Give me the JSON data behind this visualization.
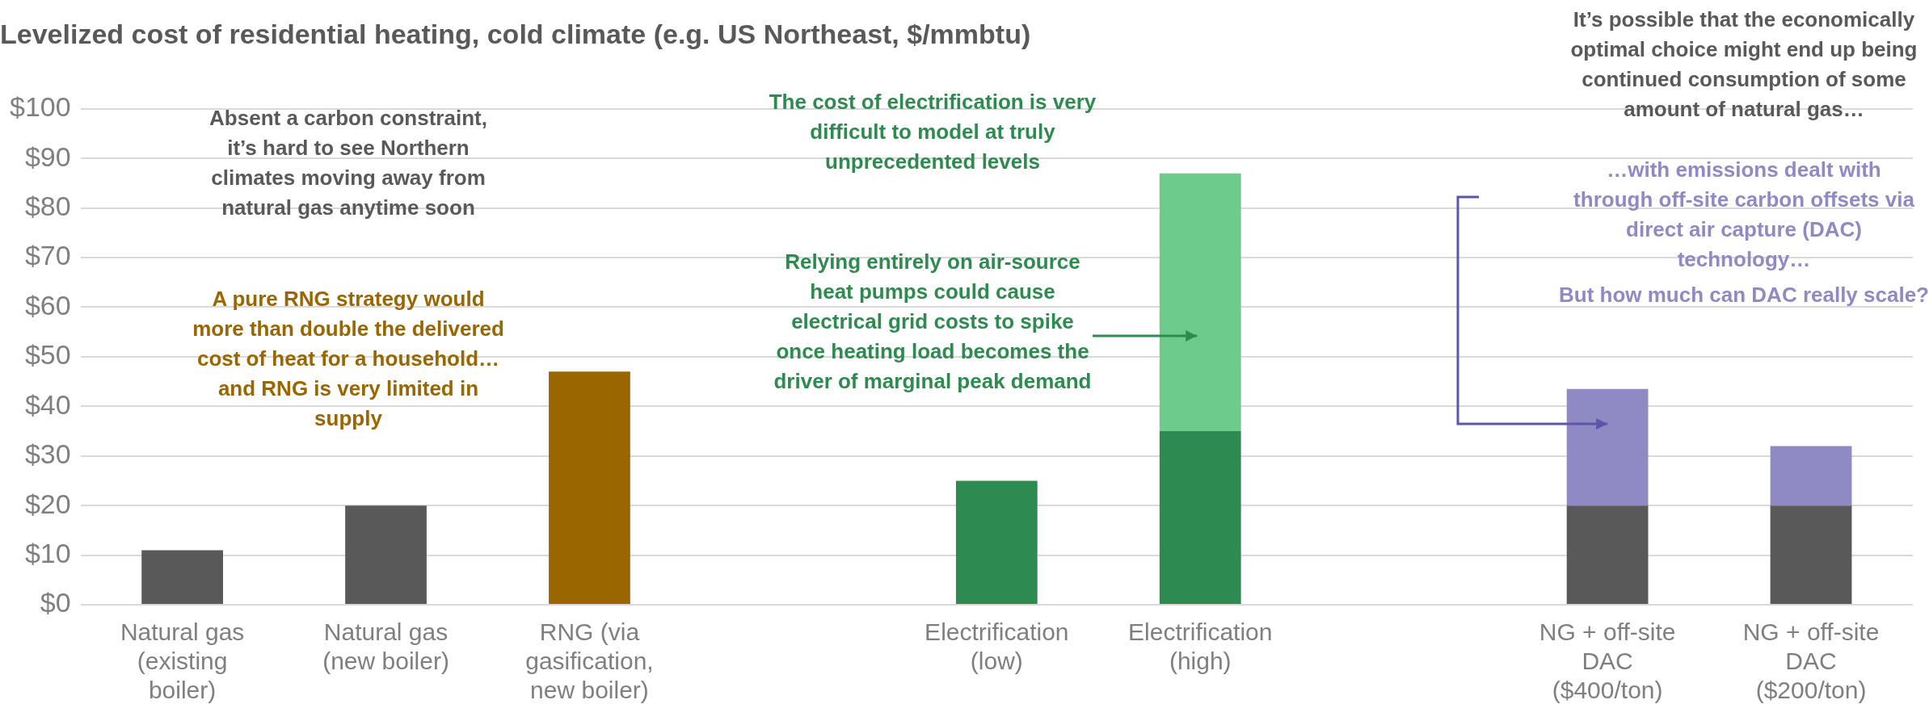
{
  "chart_data": {
    "type": "bar",
    "title": "Levelized cost of residential heating, cold climate (e.g. US Northeast, $/mmbtu)",
    "categories": [
      "Natural gas (existing boiler)",
      "Natural gas (new boiler)",
      "RNG (via gasification, new boiler)",
      null,
      "Electrification (low)",
      "Electrification (high)",
      null,
      "NG + off-site DAC ($400/ton)",
      "NG + off-site DAC ($200/ton)"
    ],
    "stacked": true,
    "series": [
      {
        "colors": [
          "#595959",
          "#595959",
          "#996600",
          "#2e8b50",
          "#2e8b50",
          "#2e8b50",
          "#595959",
          "#595959",
          "#595959"
        ],
        "values": [
          11,
          20,
          47,
          null,
          25,
          35,
          null,
          20,
          20
        ]
      },
      {
        "colors": [
          "#6dcb8c",
          "#6dcb8c",
          "#6dcb8c",
          "#6dcb8c",
          "#6dcb8c",
          "#6dcb8c",
          "#8f8ac4",
          "#8f8ac4",
          "#8f8ac4"
        ],
        "values": [
          null,
          null,
          null,
          null,
          null,
          52,
          null,
          23.5,
          12
        ]
      }
    ],
    "ylim": [
      0,
      100
    ],
    "yticks": [
      {
        "value": 0,
        "label": "$0"
      },
      {
        "value": 10,
        "label": "$10"
      },
      {
        "value": 20,
        "label": "$20"
      },
      {
        "value": 30,
        "label": "$30"
      },
      {
        "value": 40,
        "label": "$40"
      },
      {
        "value": 50,
        "label": "$50"
      },
      {
        "value": 60,
        "label": "$60"
      },
      {
        "value": 70,
        "label": "$70"
      },
      {
        "value": 80,
        "label": "$80"
      },
      {
        "value": 90,
        "label": "$90"
      },
      {
        "value": 100,
        "label": "$100"
      }
    ],
    "grid": "y",
    "legend": false,
    "annotations": [
      "Absent a carbon constraint, it’s hard to see Northern climates moving away from natural gas anytime soon",
      "A pure RNG strategy would more than double the delivered cost of heat for a household…and RNG is very limited in supply",
      "The cost of electrification is very difficult to model at truly unprecedented levels",
      "Relying entirely on air-source heat pumps could cause electrical grid costs to spike once heating load becomes the driver of marginal peak demand",
      "It’s possible that the economically optimal choice might end up being continued consumption of some amount of natural gas…",
      "…with emissions dealt with through off-site carbon offsets via direct air capture (DAC) technology…",
      "But how much can DAC really scale?"
    ]
  }
}
